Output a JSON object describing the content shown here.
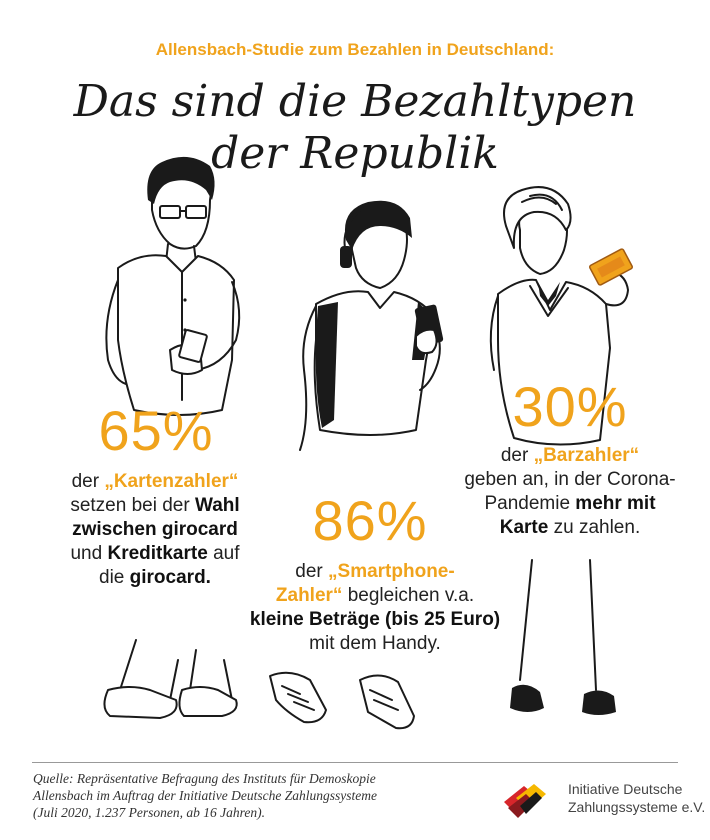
{
  "header": {
    "kicker": "Allensbach-Studie zum Bezahlen in Deutschland:",
    "title_line1": "Das sind die Bezahltypen",
    "title_line2": "der Republik"
  },
  "stats": {
    "card": {
      "percent": "65%",
      "pre": "der ",
      "type": "„Kartenzahler“",
      "line2_a": "setzen bei der ",
      "line2_b": "Wahl",
      "line3": "zwischen girocard",
      "line4_a": "und ",
      "line4_b": "Kreditkarte",
      "line4_c": " auf",
      "line5_a": "die ",
      "line5_b": "girocard."
    },
    "smartphone": {
      "percent": "86%",
      "pre": "der ",
      "type_a": "„Smartphone-",
      "type_b": "Zahler“",
      "line2_rest": " begleichen v.a.",
      "line3": "kleine Beträge (bis 25 Euro)",
      "line4": "mit dem Handy."
    },
    "cash": {
      "percent": "30%",
      "pre": "der ",
      "type": "„Barzahler“",
      "line2": "geben an, in der Corona-",
      "line3_a": "Pandemie ",
      "line3_b": "mehr mit",
      "line4_a": "Karte",
      "line4_b": " zu zahlen."
    }
  },
  "footer": {
    "source_line1": "Quelle: Repräsentative Befragung des Instituts für Demoskopie",
    "source_line2": "Allensbach im Auftrag der Initiative Deutsche Zahlungssysteme",
    "source_line3": "(Juli 2020, 1.237 Personen, ab 16 Jahren).",
    "logo_line1": "Initiative Deutsche",
    "logo_line2": "Zahlungssysteme e.V."
  },
  "colors": {
    "accent": "#f0a31c",
    "text": "#222222",
    "logo_red": "#d7262b",
    "logo_yellow": "#f6b800"
  },
  "icons": [
    "man-with-card-illustration",
    "teen-with-phone-illustration",
    "woman-with-cash-illustration",
    "ids-logo-icon"
  ]
}
